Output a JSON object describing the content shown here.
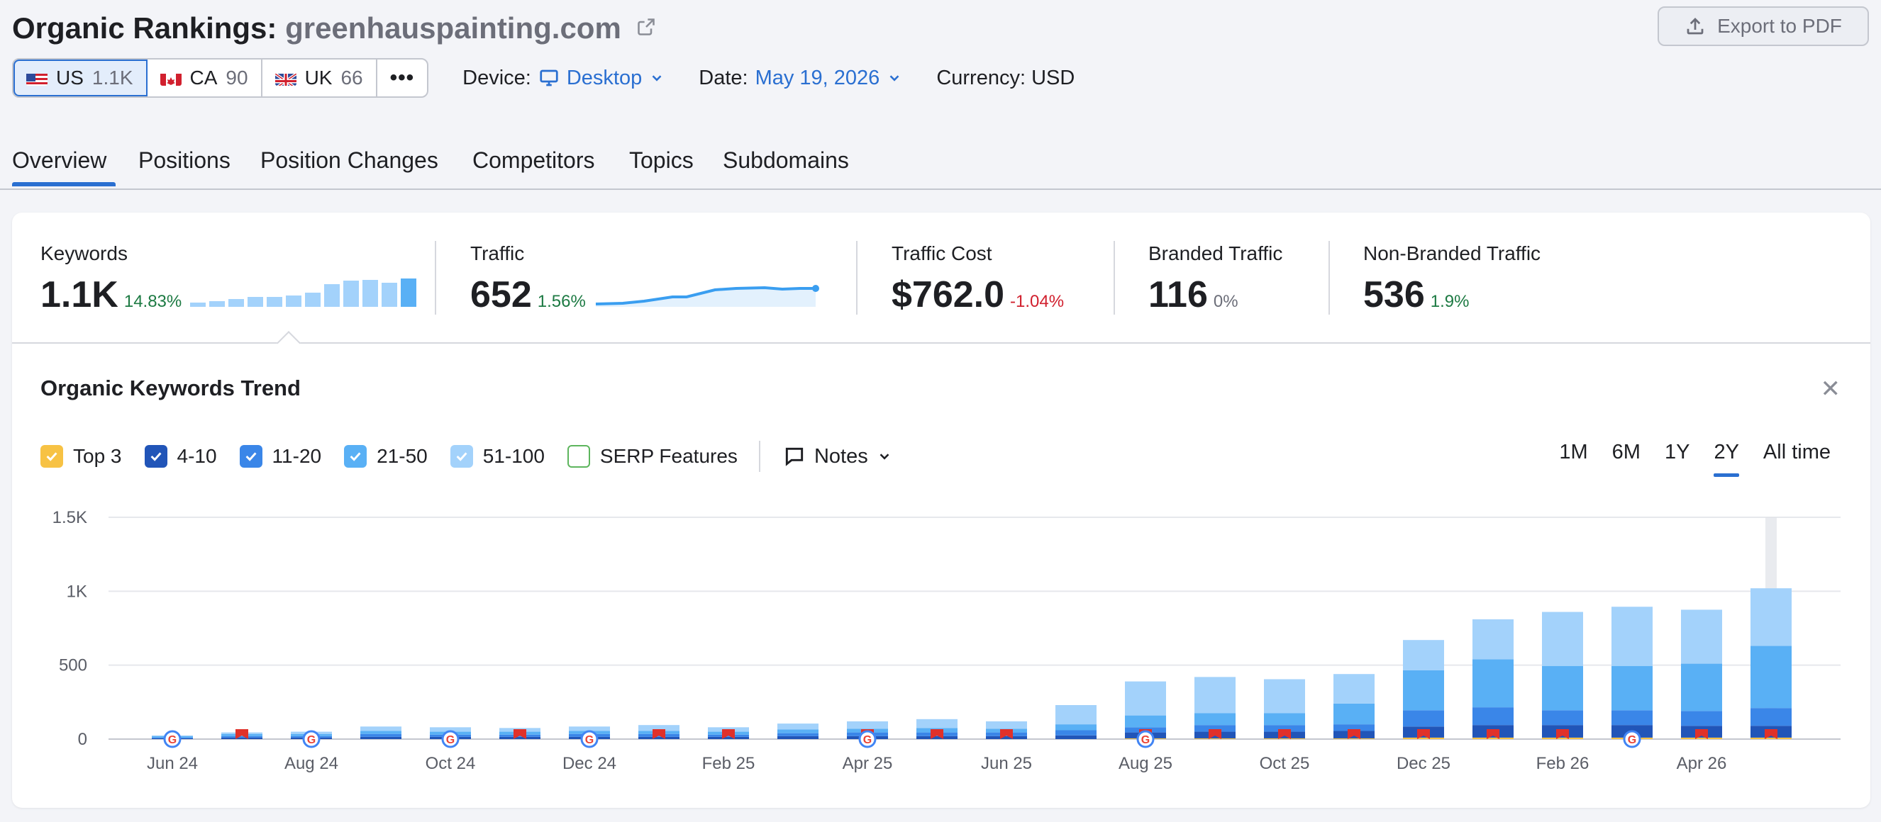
{
  "header": {
    "title_prefix": "Organic Rankings:",
    "domain": "greenhauspainting.com",
    "export_label": "Export to PDF"
  },
  "databases": [
    {
      "code": "US",
      "count": "1.1K",
      "flag": "us-flag-icon",
      "active": true
    },
    {
      "code": "CA",
      "count": "90",
      "flag": "ca-flag-icon",
      "active": false
    },
    {
      "code": "UK",
      "count": "66",
      "flag": "uk-flag-icon",
      "active": false
    }
  ],
  "filters": {
    "device_label": "Device:",
    "device_value": "Desktop",
    "date_label": "Date:",
    "date_value": "May 19, 2026",
    "currency": "Currency: USD"
  },
  "tabs": [
    "Overview",
    "Positions",
    "Position Changes",
    "Competitors",
    "Topics",
    "Subdomains"
  ],
  "metrics": {
    "keywords": {
      "label": "Keywords",
      "value": "1.1K",
      "delta": "14.83%"
    },
    "traffic": {
      "label": "Traffic",
      "value": "652",
      "delta": "1.56%"
    },
    "traffic_cost": {
      "label": "Traffic Cost",
      "value": "$762.0",
      "delta": "-1.04%"
    },
    "branded": {
      "label": "Branded Traffic",
      "value": "116",
      "delta": "0%"
    },
    "non_branded": {
      "label": "Non-Branded Traffic",
      "value": "536",
      "delta": "1.9%"
    }
  },
  "trend": {
    "title": "Organic Keywords Trend",
    "legend": [
      {
        "label": "Top 3",
        "checked": true,
        "color": "#f7c244"
      },
      {
        "label": "4-10",
        "checked": true,
        "color": "#2155b8"
      },
      {
        "label": "11-20",
        "checked": true,
        "color": "#3a86e8"
      },
      {
        "label": "21-50",
        "checked": true,
        "color": "#59b0f5"
      },
      {
        "label": "51-100",
        "checked": true,
        "color": "#a3d2fb"
      },
      {
        "label": "SERP Features",
        "checked": false,
        "color": "#5db55d"
      }
    ],
    "notes_label": "Notes",
    "ranges": [
      "1M",
      "6M",
      "1Y",
      "2Y",
      "All time"
    ],
    "active_range": "2Y"
  },
  "colors": {
    "accent": "#2a6fd1",
    "top3": "#f7c244",
    "pos4_10": "#2155b8",
    "pos11_20": "#3a86e8",
    "pos21_50": "#59b0f5",
    "pos51_100": "#a3d2fb",
    "positive": "#1d7a43",
    "negative": "#d1202e"
  },
  "chart_data": {
    "type": "bar",
    "stacked": true,
    "ylim": [
      0,
      1500
    ],
    "yticks": [
      "1.5K",
      "1K",
      "500",
      "0"
    ],
    "ytick_values": [
      1500,
      1000,
      500,
      0
    ],
    "xtick_labels": [
      "Jun 24",
      "Aug 24",
      "Oct 24",
      "Dec 24",
      "Feb 25",
      "Apr 25",
      "Jun 25",
      "Aug 25",
      "Oct 25",
      "Dec 25",
      "Feb 26",
      "Apr 26"
    ],
    "categories": [
      "Jun 24",
      "Jul 24",
      "Aug 24",
      "Sep 24",
      "Oct 24",
      "Nov 24",
      "Dec 24",
      "Jan 25",
      "Feb 25",
      "Mar 25",
      "Apr 25",
      "May 25",
      "Jun 25",
      "Jul 25",
      "Aug 25",
      "Sep 25",
      "Oct 25",
      "Nov 25",
      "Dec 25",
      "Jan 26",
      "Feb 26",
      "Mar 26",
      "Apr 26",
      "May 26"
    ],
    "series": [
      {
        "name": "Top 3",
        "values": [
          0,
          0,
          0,
          0,
          0,
          0,
          0,
          0,
          0,
          0,
          0,
          0,
          0,
          0,
          5,
          5,
          5,
          5,
          10,
          10,
          10,
          10,
          10,
          10
        ]
      },
      {
        "name": "4-10",
        "values": [
          5,
          10,
          10,
          15,
          15,
          15,
          15,
          15,
          15,
          20,
          20,
          20,
          20,
          25,
          40,
          45,
          45,
          50,
          75,
          85,
          85,
          85,
          80,
          80
        ]
      },
      {
        "name": "11-20",
        "values": [
          5,
          10,
          10,
          20,
          15,
          15,
          20,
          20,
          15,
          20,
          25,
          25,
          25,
          35,
          35,
          45,
          45,
          45,
          110,
          120,
          100,
          100,
          100,
          120
        ]
      },
      {
        "name": "21-50",
        "values": [
          10,
          15,
          15,
          20,
          20,
          20,
          20,
          20,
          20,
          25,
          25,
          30,
          25,
          40,
          80,
          80,
          80,
          140,
          270,
          325,
          300,
          300,
          320,
          420
        ]
      },
      {
        "name": "51-100",
        "values": [
          5,
          10,
          15,
          30,
          30,
          25,
          30,
          40,
          30,
          40,
          50,
          60,
          50,
          130,
          230,
          245,
          230,
          200,
          205,
          270,
          365,
          400,
          365,
          390
        ]
      }
    ],
    "google_update_markers": [
      "Jun 24",
      "Aug 24",
      "Oct 24",
      "Dec 24",
      "Apr 25",
      "Aug 25",
      "Mar 26"
    ],
    "note_markers": [
      "Jul 24",
      "Nov 24",
      "Jan 25",
      "Feb 25",
      "Apr 25",
      "May 25",
      "Jun 25",
      "Aug 25",
      "Sep 25",
      "Oct 25",
      "Nov 25",
      "Dec 25",
      "Jan 26",
      "Feb 26",
      "Apr 26",
      "May 26"
    ]
  }
}
